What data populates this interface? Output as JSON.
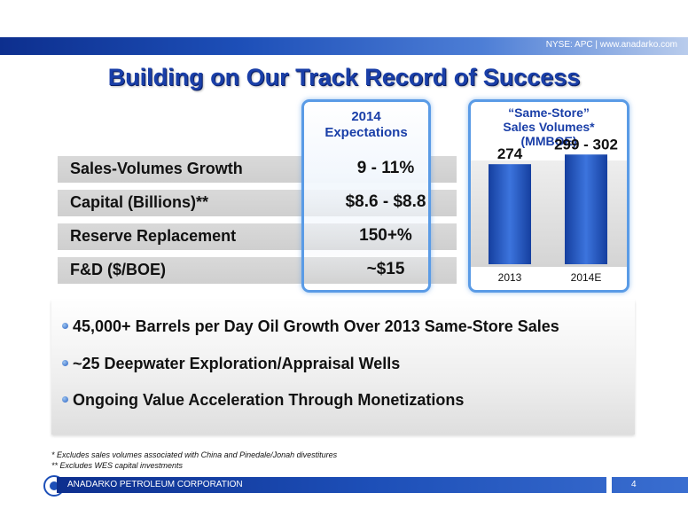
{
  "header": {
    "ticker": "NYSE: APC | www.anadarko.com"
  },
  "title": "Building on Our Track Record of Success",
  "expectations": {
    "heading_line1": "2014",
    "heading_line2": "Expectations",
    "rows": [
      {
        "label": "Sales-Volumes Growth",
        "value": "9 - 11%"
      },
      {
        "label": "Capital (Billions)**",
        "value": "$8.6 - $8.8"
      },
      {
        "label": "Reserve Replacement",
        "value": "150+%"
      },
      {
        "label": "F&D ($/BOE)",
        "value": "~$15"
      }
    ]
  },
  "chart_data": {
    "type": "bar",
    "title_lines": [
      "“Same-Store”",
      "Sales Volumes*",
      "(MMBOE)"
    ],
    "categories": [
      "2013",
      "2014E"
    ],
    "values": [
      274,
      300.5
    ],
    "data_labels": [
      "274",
      "299 - 302"
    ],
    "ylim": [
      0,
      340
    ],
    "grid": false,
    "colors": {
      "bar": "#1f4fc0",
      "bar_light": "#3c74dd"
    }
  },
  "bullets": [
    "45,000+ Barrels per Day Oil Growth Over 2013 Same-Store Sales",
    "~25 Deepwater Exploration/Appraisal Wells",
    "Ongoing Value Acceleration Through Monetizations"
  ],
  "footnotes": [
    "* Excludes sales volumes associated with China and Pinedale/Jonah divestitures",
    "** Excludes WES capital investments"
  ],
  "footer": {
    "company": "ANADARKO PETROLEUM CORPORATION",
    "page_number": "4"
  }
}
